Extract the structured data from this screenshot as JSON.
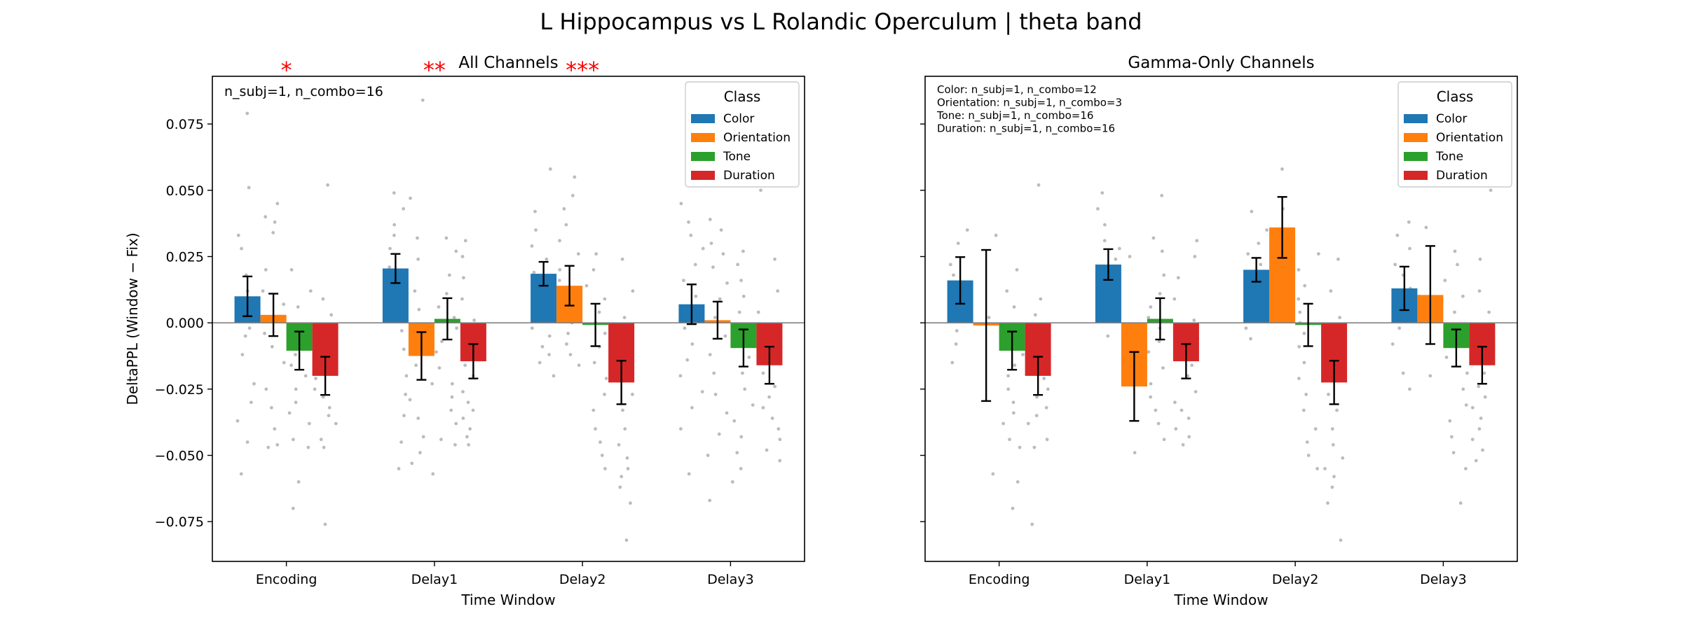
{
  "figure": {
    "title": "L Hippocampus vs L Rolandic Operculum  |  theta band"
  },
  "colors": {
    "Color": "#1f77b4",
    "Orientation": "#ff7f0e",
    "Tone": "#2ca02c",
    "Duration": "#d62728",
    "points": "#b0b0b0",
    "zero_line": "#808080",
    "stars": "#ff0000"
  },
  "chart_data": [
    {
      "type": "bar",
      "title": "All Channels",
      "xlabel": "Time Window",
      "ylabel": "DeltaPPL (Window − Fix)",
      "categories": [
        "Encoding",
        "Delay1",
        "Delay2",
        "Delay3"
      ],
      "ylim": [
        -0.09,
        0.093
      ],
      "yticks": [
        -0.075,
        -0.05,
        -0.025,
        0.0,
        0.025,
        0.05,
        0.075
      ],
      "ytick_labels": [
        "−0.075",
        "−0.050",
        "−0.025",
        "0.000",
        "0.025",
        "0.050",
        "0.075"
      ],
      "legend": {
        "title": "Class",
        "position": "top-right"
      },
      "annotation": [
        "n_subj=1, n_combo=16"
      ],
      "significance": [
        {
          "category": "Encoding",
          "label": "*"
        },
        {
          "category": "Delay1",
          "label": "**"
        },
        {
          "category": "Delay2",
          "label": "***"
        }
      ],
      "series": [
        {
          "name": "Color",
          "values": [
            0.01,
            0.0205,
            0.0185,
            0.007
          ],
          "err": [
            0.0075,
            0.0055,
            0.0045,
            0.0075
          ]
        },
        {
          "name": "Orientation",
          "values": [
            0.003,
            -0.0125,
            0.014,
            0.001
          ],
          "err": [
            0.008,
            0.009,
            0.0075,
            0.007
          ]
        },
        {
          "name": "Tone",
          "values": [
            -0.0105,
            0.0015,
            -0.0008,
            -0.0095
          ],
          "err": [
            0.0072,
            0.0078,
            0.008,
            0.007
          ]
        },
        {
          "name": "Duration",
          "values": [
            -0.02,
            -0.0145,
            -0.0225,
            -0.016
          ],
          "err": [
            0.0072,
            0.0065,
            0.0082,
            0.007
          ]
        }
      ],
      "points": {
        "Encoding": {
          "Color": [
            0.079,
            0.051,
            0.033,
            0.028,
            0.018,
            0.012,
            0.008,
            0.002,
            -0.002,
            -0.005,
            -0.012,
            -0.023,
            -0.03,
            -0.037,
            -0.045,
            -0.057
          ],
          "Orientation": [
            0.045,
            0.04,
            0.038,
            0.034,
            0.02,
            0.012,
            0.007,
            0.001,
            -0.004,
            -0.009,
            -0.015,
            -0.025,
            -0.032,
            -0.04,
            -0.046,
            -0.047
          ],
          "Tone": [
            0.02,
            0.012,
            0.006,
            -0.003,
            -0.008,
            -0.012,
            -0.016,
            -0.02,
            -0.025,
            -0.03,
            -0.034,
            -0.038,
            -0.044,
            -0.047,
            -0.06,
            -0.07
          ],
          "Duration": [
            0.052,
            0.009,
            0.003,
            -0.005,
            -0.01,
            -0.015,
            -0.018,
            -0.021,
            -0.025,
            -0.028,
            -0.032,
            -0.035,
            -0.038,
            -0.044,
            -0.047,
            -0.076
          ]
        },
        "Delay1": {
          "Color": [
            0.049,
            0.043,
            0.037,
            0.033,
            0.028,
            0.021,
            0.015,
            0.01,
            0.002,
            -0.003,
            -0.01,
            -0.02,
            -0.027,
            -0.035,
            -0.045,
            -0.055
          ],
          "Orientation": [
            0.084,
            0.047,
            0.032,
            0.024,
            0.012,
            0.005,
            -0.003,
            -0.01,
            -0.016,
            -0.023,
            -0.029,
            -0.036,
            -0.043,
            -0.049,
            -0.053,
            -0.057
          ],
          "Tone": [
            0.032,
            0.027,
            0.018,
            0.011,
            0.006,
            0.002,
            -0.002,
            -0.007,
            -0.011,
            -0.017,
            -0.023,
            -0.028,
            -0.033,
            -0.038,
            -0.044,
            -0.046
          ],
          "Duration": [
            0.031,
            0.025,
            0.017,
            0.009,
            0.001,
            -0.006,
            -0.011,
            -0.016,
            -0.02,
            -0.026,
            -0.03,
            -0.033,
            -0.036,
            -0.04,
            -0.043,
            -0.046
          ]
        },
        "Delay2": {
          "Color": [
            0.058,
            0.042,
            0.035,
            0.029,
            0.024,
            0.019,
            0.014,
            0.01,
            0.006,
            0.002,
            -0.002,
            -0.005,
            -0.009,
            -0.012,
            -0.015,
            -0.02
          ],
          "Orientation": [
            0.055,
            0.048,
            0.043,
            0.037,
            0.031,
            0.026,
            0.02,
            0.016,
            0.012,
            0.008,
            0.004,
            0.0,
            -0.004,
            -0.008,
            -0.012,
            -0.016
          ],
          "Tone": [
            0.026,
            0.02,
            0.014,
            0.009,
            0.004,
            0.0,
            -0.004,
            -0.009,
            -0.015,
            -0.021,
            -0.027,
            -0.033,
            -0.04,
            -0.045,
            -0.05,
            -0.055
          ],
          "Duration": [
            0.024,
            0.012,
            0.002,
            -0.006,
            -0.013,
            -0.02,
            -0.027,
            -0.033,
            -0.04,
            -0.046,
            -0.051,
            -0.055,
            -0.058,
            -0.062,
            -0.068,
            -0.082
          ]
        },
        "Delay3": {
          "Color": [
            0.045,
            0.038,
            0.033,
            0.028,
            0.022,
            0.016,
            0.01,
            0.004,
            -0.002,
            -0.008,
            -0.014,
            -0.02,
            -0.026,
            -0.032,
            -0.04,
            -0.057
          ],
          "Orientation": [
            0.039,
            0.035,
            0.03,
            0.026,
            0.021,
            0.015,
            0.009,
            0.002,
            -0.005,
            -0.012,
            -0.019,
            -0.027,
            -0.034,
            -0.042,
            -0.05,
            -0.067
          ],
          "Tone": [
            0.027,
            0.022,
            0.016,
            0.01,
            0.004,
            -0.002,
            -0.008,
            -0.013,
            -0.019,
            -0.025,
            -0.031,
            -0.037,
            -0.043,
            -0.049,
            -0.055,
            -0.06
          ],
          "Duration": [
            0.05,
            0.024,
            0.012,
            0.004,
            -0.003,
            -0.009,
            -0.014,
            -0.019,
            -0.024,
            -0.028,
            -0.032,
            -0.036,
            -0.04,
            -0.044,
            -0.048,
            -0.052
          ]
        }
      }
    },
    {
      "type": "bar",
      "title": "Gamma-Only Channels",
      "xlabel": "Time Window",
      "ylabel": "",
      "categories": [
        "Encoding",
        "Delay1",
        "Delay2",
        "Delay3"
      ],
      "ylim": [
        -0.09,
        0.093
      ],
      "yticks": [
        -0.075,
        -0.05,
        -0.025,
        0.0,
        0.025,
        0.05,
        0.075
      ],
      "ytick_labels": [],
      "legend": {
        "title": "Class",
        "position": "top-right"
      },
      "annotation": [
        "Color: n_subj=1, n_combo=12",
        "Orientation: n_subj=1, n_combo=3",
        "Tone: n_subj=1, n_combo=16",
        "Duration: n_subj=1, n_combo=16"
      ],
      "significance": [],
      "series": [
        {
          "name": "Color",
          "values": [
            0.016,
            0.022,
            0.02,
            0.013
          ],
          "err": [
            0.0088,
            0.0058,
            0.0045,
            0.0082
          ]
        },
        {
          "name": "Orientation",
          "values": [
            -0.001,
            -0.024,
            0.036,
            0.0105
          ],
          "err": [
            0.0285,
            0.013,
            0.0115,
            0.0185
          ]
        },
        {
          "name": "Tone",
          "values": [
            -0.0105,
            0.0015,
            -0.0008,
            -0.0095
          ],
          "err": [
            0.0072,
            0.0078,
            0.008,
            0.007
          ]
        },
        {
          "name": "Duration",
          "values": [
            -0.02,
            -0.0145,
            -0.0225,
            -0.016
          ],
          "err": [
            0.0072,
            0.0065,
            0.0082,
            0.007
          ]
        }
      ],
      "points": {
        "Encoding": {
          "Color": [
            0.035,
            0.03,
            0.022,
            0.018,
            0.015,
            0.012,
            0.008,
            0.004,
            0.001,
            -0.003,
            -0.008,
            -0.015
          ],
          "Orientation": [
            0.033,
            0.002,
            -0.057
          ],
          "Tone": [
            0.02,
            0.012,
            0.006,
            -0.003,
            -0.008,
            -0.012,
            -0.016,
            -0.02,
            -0.025,
            -0.03,
            -0.034,
            -0.038,
            -0.044,
            -0.047,
            -0.06,
            -0.07
          ],
          "Duration": [
            0.052,
            0.009,
            0.003,
            -0.005,
            -0.01,
            -0.015,
            -0.018,
            -0.021,
            -0.025,
            -0.028,
            -0.032,
            -0.035,
            -0.038,
            -0.044,
            -0.047,
            -0.076
          ]
        },
        "Delay1": {
          "Color": [
            0.049,
            0.043,
            0.037,
            0.031,
            0.028,
            0.024,
            0.02,
            0.016,
            0.012,
            0.008,
            0.002,
            -0.005
          ],
          "Orientation": [
            0.025,
            -0.02,
            -0.049
          ],
          "Tone": [
            0.048,
            0.032,
            0.027,
            0.018,
            0.011,
            0.006,
            0.002,
            -0.002,
            -0.007,
            -0.011,
            -0.017,
            -0.023,
            -0.028,
            -0.033,
            -0.038,
            -0.044
          ],
          "Duration": [
            0.031,
            0.025,
            0.017,
            0.009,
            0.001,
            -0.006,
            -0.011,
            -0.016,
            -0.02,
            -0.026,
            -0.03,
            -0.033,
            -0.036,
            -0.04,
            -0.043,
            -0.046
          ]
        },
        "Delay2": {
          "Color": [
            0.042,
            0.035,
            0.03,
            0.026,
            0.022,
            0.018,
            0.014,
            0.01,
            0.006,
            0.002,
            -0.002,
            -0.006
          ],
          "Orientation": [
            0.058,
            0.043,
            0.015
          ],
          "Tone": [
            0.026,
            0.02,
            0.014,
            0.009,
            0.004,
            0.0,
            -0.004,
            -0.009,
            -0.015,
            -0.021,
            -0.027,
            -0.033,
            -0.04,
            -0.045,
            -0.05,
            -0.055
          ],
          "Duration": [
            0.024,
            0.012,
            0.002,
            -0.006,
            -0.013,
            -0.02,
            -0.027,
            -0.033,
            -0.04,
            -0.046,
            -0.051,
            -0.055,
            -0.058,
            -0.062,
            -0.068,
            -0.082
          ]
        },
        "Delay3": {
          "Color": [
            0.038,
            0.033,
            0.028,
            0.022,
            0.018,
            0.013,
            0.008,
            0.003,
            -0.002,
            -0.008,
            -0.019,
            -0.025
          ],
          "Orientation": [
            0.036,
            0.01,
            -0.02
          ],
          "Tone": [
            0.027,
            0.022,
            0.016,
            0.01,
            0.004,
            -0.002,
            -0.008,
            -0.013,
            -0.019,
            -0.025,
            -0.031,
            -0.037,
            -0.043,
            -0.049,
            -0.055,
            -0.068
          ],
          "Duration": [
            0.05,
            0.024,
            0.012,
            0.004,
            -0.003,
            -0.009,
            -0.014,
            -0.019,
            -0.024,
            -0.028,
            -0.032,
            -0.036,
            -0.04,
            -0.044,
            -0.048,
            -0.052
          ]
        }
      }
    }
  ]
}
